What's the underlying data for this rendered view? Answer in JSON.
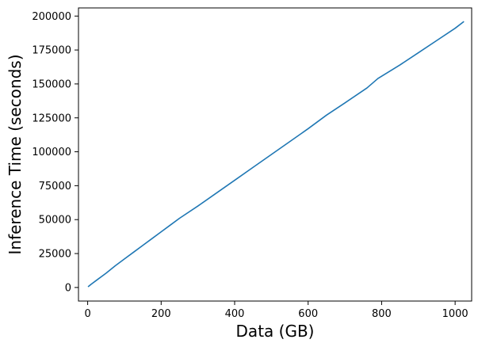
{
  "chart_data": {
    "type": "line",
    "title": "",
    "xlabel": "Data (GB)",
    "ylabel": "Inference Time (seconds)",
    "xlim": [
      -25,
      1045
    ],
    "ylim": [
      -10000,
      206000
    ],
    "x_ticks": [
      0,
      200,
      400,
      600,
      800,
      1000
    ],
    "y_ticks": [
      0,
      25000,
      50000,
      75000,
      100000,
      125000,
      150000,
      175000,
      200000
    ],
    "grid": false,
    "legend": null,
    "series": [
      {
        "color": "#1f77b4",
        "x": [
          1,
          10,
          25,
          50,
          75,
          100,
          125,
          150,
          175,
          200,
          225,
          250,
          300,
          350,
          400,
          450,
          500,
          550,
          600,
          650,
          700,
          760,
          790,
          850,
          900,
          950,
          1000,
          1024
        ],
        "y": [
          500,
          2500,
          5500,
          10500,
          16000,
          21000,
          26000,
          31000,
          36000,
          41000,
          46000,
          51000,
          60000,
          69500,
          79000,
          88500,
          98000,
          107500,
          117000,
          127000,
          136000,
          147000,
          154000,
          164000,
          173000,
          182000,
          191000,
          196000
        ]
      }
    ]
  }
}
